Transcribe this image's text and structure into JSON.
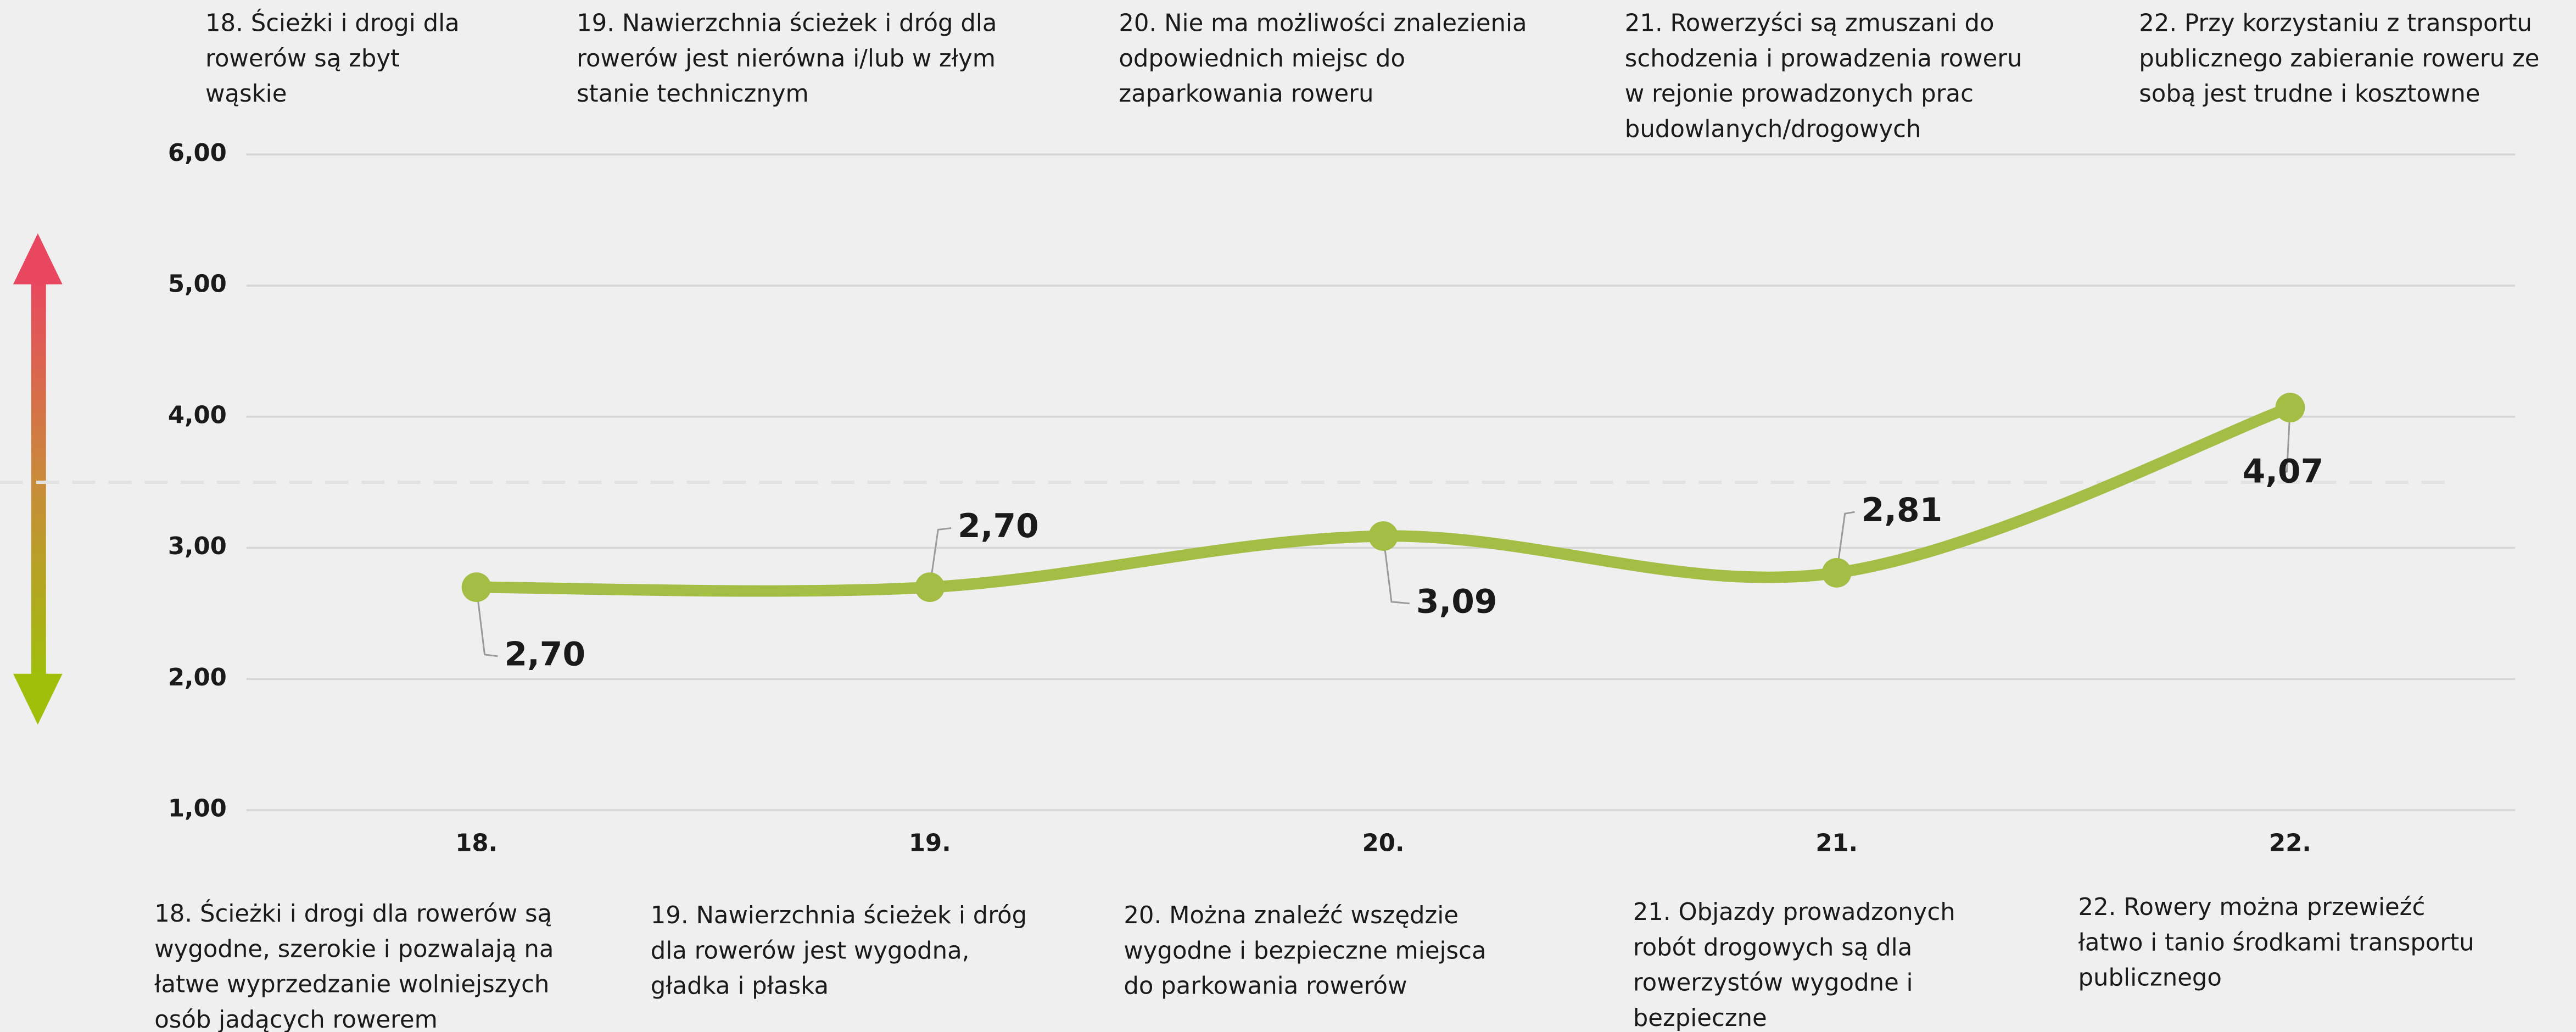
{
  "chart_data": {
    "type": "line",
    "categories": [
      "18.",
      "19.",
      "20.",
      "21.",
      "22."
    ],
    "series": [
      {
        "color": "#a3bd45",
        "values": [
          2.7,
          2.7,
          3.09,
          2.81,
          4.07
        ],
        "value_labels": [
          "2,70",
          "2,70",
          "3,09",
          "2,81",
          "4,07"
        ]
      }
    ],
    "ylim": [
      1,
      6
    ],
    "yticks": [
      {
        "value": 1,
        "label": "1,00"
      },
      {
        "value": 2,
        "label": "2,00"
      },
      {
        "value": 3,
        "label": "3,00"
      },
      {
        "value": 4,
        "label": "4,00"
      },
      {
        "value": 5,
        "label": "5,00"
      },
      {
        "value": 6,
        "label": "6,00"
      }
    ],
    "grid": true,
    "reference_line": 3.5,
    "top_labels": [
      [
        "18. Ścieżki i drogi dla",
        "rowerów są zbyt",
        "wąskie"
      ],
      [
        "19. Nawierzchnia ścieżek i dróg dla",
        "rowerów jest nierówna i/lub w złym",
        "stanie technicznym"
      ],
      [
        "20. Nie ma możliwości znalezienia",
        "odpowiednich miejsc do",
        "zaparkowania roweru"
      ],
      [
        "21. Rowerzyści są zmuszani do",
        "schodzenia i prowadzenia roweru",
        "w rejonie prowadzonych prac",
        "budowlanych/drogowych"
      ],
      [
        "22. Przy korzystaniu z transportu",
        "publicznego zabieranie roweru ze",
        "sobą jest trudne i kosztowne"
      ]
    ],
    "bottom_labels": [
      [
        "18. Ścieżki i drogi dla rowerów są",
        "wygodne, szerokie i pozwalają na",
        "łatwe wyprzedzanie wolniejszych",
        "osób jadących rowerem"
      ],
      [
        "19. Nawierzchnia ścieżek i dróg",
        "dla rowerów jest wygodna,",
        "gładka i płaska"
      ],
      [
        "20. Można znaleźć wszędzie",
        "wygodne i bezpieczne miejsca",
        "do parkowania rowerów"
      ],
      [
        "21. Objazdy prowadzonych",
        "robót drogowych są dla",
        "rowerzystów wygodne i",
        "bezpieczne"
      ],
      [
        "22. Rowery można przewieźć",
        "łatwo i tanio środkami transportu",
        "publicznego"
      ]
    ]
  }
}
